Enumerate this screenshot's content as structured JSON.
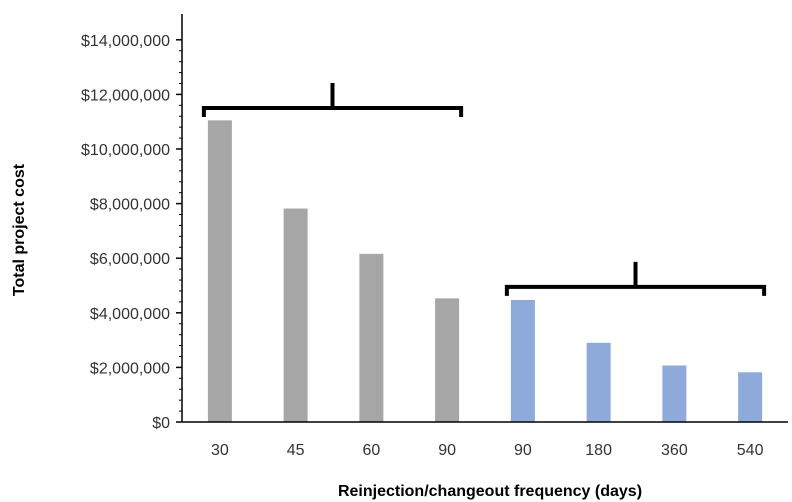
{
  "chart_data": {
    "type": "bar",
    "title": "",
    "xlabel": "Reinjection/changeout frequency (days)",
    "ylabel": "Total project cost",
    "ylim": [
      0,
      14000000
    ],
    "ytick_step": 2000000,
    "ytick_labels": [
      "$0",
      "$2,000,000",
      "$4,000,000",
      "$6,000,000",
      "$8,000,000",
      "$10,000,000",
      "$12,000,000",
      "$14,000,000"
    ],
    "grid": false,
    "legend": "none",
    "categories": [
      "30",
      "45",
      "60",
      "90",
      "90",
      "180",
      "360",
      "540"
    ],
    "values": [
      11050000,
      7820000,
      6160000,
      4530000,
      4470000,
      2900000,
      2070000,
      1820000
    ],
    "bar_colors": [
      "#a6a6a6",
      "#a6a6a6",
      "#a6a6a6",
      "#a6a6a6",
      "#8eaadb",
      "#8eaadb",
      "#8eaadb",
      "#8eaadb"
    ],
    "groups": [
      {
        "name": "",
        "from": 0,
        "to": 3,
        "bracket_value": 11500000
      },
      {
        "name": "",
        "from": 4,
        "to": 7,
        "bracket_value": 4950000
      }
    ]
  }
}
